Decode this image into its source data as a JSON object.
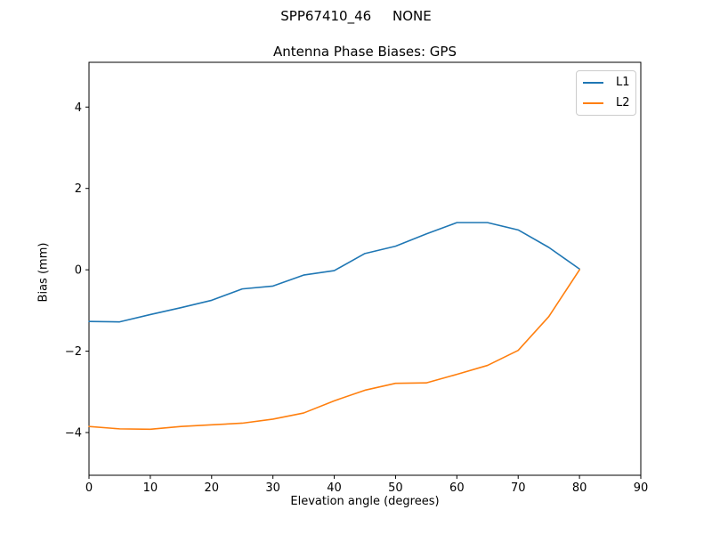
{
  "figure": {
    "suptitle": "SPP67410_46     NONE"
  },
  "chart_data": {
    "type": "line",
    "title": "Antenna Phase Biases: GPS",
    "xlabel": "Elevation angle (degrees)",
    "ylabel": "Bias (mm)",
    "xlim": [
      0,
      90
    ],
    "ylim": [
      -5.05,
      5.1
    ],
    "x_ticks": [
      0,
      10,
      20,
      30,
      40,
      50,
      60,
      70,
      80,
      90
    ],
    "x_tick_labels": [
      "0",
      "10",
      "20",
      "30",
      "40",
      "50",
      "60",
      "70",
      "80",
      "90"
    ],
    "y_ticks": [
      -4,
      -2,
      0,
      2,
      4
    ],
    "y_tick_labels": [
      "−4",
      "−2",
      "0",
      "2",
      "4"
    ],
    "grid": false,
    "legend_position": "upper right",
    "x": [
      0,
      5,
      10,
      15,
      20,
      25,
      30,
      35,
      40,
      45,
      50,
      55,
      60,
      65,
      70,
      75,
      80
    ],
    "series": [
      {
        "name": "L1",
        "color": "#1f77b4",
        "values": [
          -1.27,
          -1.28,
          -1.1,
          -0.93,
          -0.75,
          -0.47,
          -0.4,
          -0.13,
          -0.02,
          0.4,
          0.58,
          0.88,
          1.16,
          1.16,
          0.98,
          0.55,
          0.02
        ]
      },
      {
        "name": "L2",
        "color": "#ff7f0e",
        "values": [
          -3.85,
          -3.91,
          -3.92,
          -3.85,
          -3.81,
          -3.77,
          -3.67,
          -3.52,
          -3.22,
          -2.96,
          -2.79,
          -2.78,
          -2.57,
          -2.35,
          -1.98,
          -1.15,
          0.0
        ]
      }
    ]
  }
}
